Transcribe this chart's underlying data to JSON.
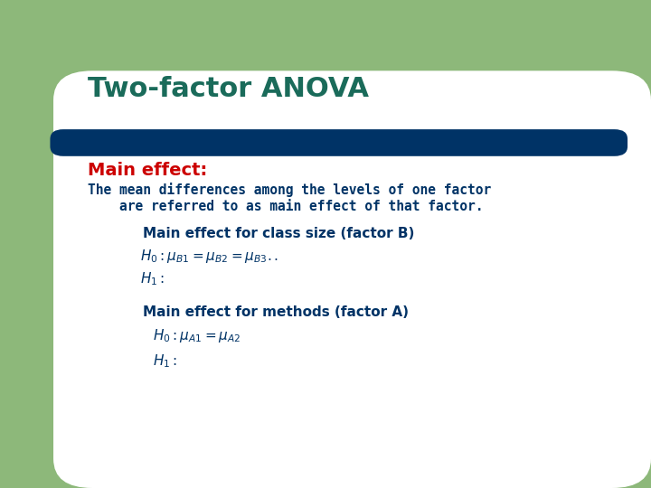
{
  "title": "Two-factor ANOVA",
  "title_color": "#1a6b5a",
  "bar_color": "#003366",
  "main_effect_label": "Main effect:",
  "main_effect_color": "#cc0000",
  "body_color": "#003366",
  "background_color": "#8db87a",
  "green_rect_color": "#8db87a",
  "white_area_color": "#ffffff",
  "body_text_line1": "The mean differences among the levels of one factor",
  "body_text_line2": "    are referred to as main effect of that factor.",
  "section1_title": "Main effect for class size (factor B)",
  "section1_eq1": "$H_{0} : \\mu_{B1} = \\mu_{B2} = \\mu_{B3}..$",
  "section1_eq2": "$H_{1} :$",
  "section2_title": "Main effect for methods (factor A)",
  "section2_eq1": "$H_{0} : \\mu_{A1} = \\mu_{A2}$",
  "section2_eq2": "$H_{1} :$",
  "fig_width": 7.2,
  "fig_height": 5.4,
  "dpi": 100
}
